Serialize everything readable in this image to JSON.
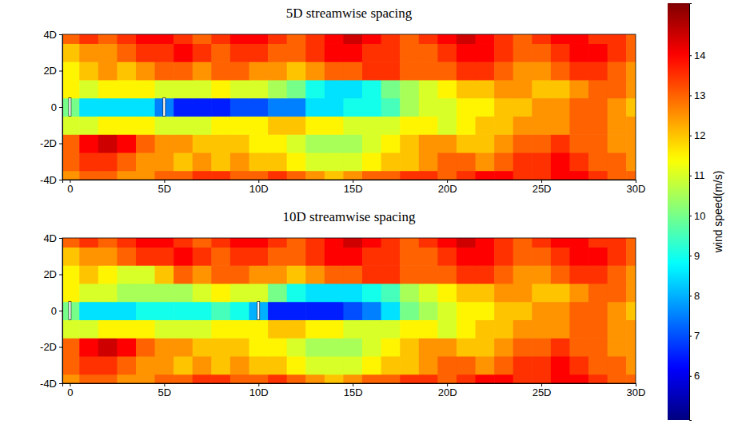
{
  "chart_data": [
    {
      "type": "heatmap",
      "title": "5D streamwise spacing",
      "x": [
        0,
        1,
        2,
        3,
        4,
        5,
        6,
        7,
        8,
        9,
        10,
        11,
        12,
        13,
        14,
        15,
        16,
        17,
        18,
        19,
        20,
        21,
        22,
        23,
        24,
        25,
        26,
        27,
        28,
        29,
        30
      ],
      "y": [
        -4,
        -3,
        -2,
        -1,
        0,
        1,
        2,
        3,
        4
      ],
      "z": [
        [
          12.5,
          13,
          13,
          12.5,
          12.5,
          13,
          13,
          13.5,
          13.5,
          13,
          13,
          13.5,
          13,
          12.5,
          12,
          12.5,
          13,
          13,
          13.5,
          13.5,
          13,
          13.5,
          14,
          14,
          13.5,
          13.5,
          14,
          14,
          13.5,
          13,
          13
        ],
        [
          13,
          13.5,
          13.5,
          13,
          12.5,
          12.5,
          12,
          12.5,
          12,
          12.5,
          12,
          12,
          11.5,
          11,
          11,
          11,
          11.5,
          12,
          12,
          12.5,
          13,
          13,
          12.5,
          13,
          13.5,
          13.5,
          14,
          13.5,
          13,
          13,
          12.5
        ],
        [
          13,
          14,
          14.5,
          14,
          13,
          12.5,
          12.5,
          12,
          12,
          12,
          11.5,
          11.5,
          11,
          10.5,
          10.5,
          10.5,
          11,
          11.5,
          12,
          12.5,
          12.5,
          12,
          12,
          12.5,
          13,
          13,
          13.5,
          13,
          13,
          12.5,
          12.5
        ],
        [
          11,
          11,
          11.5,
          11.5,
          11.5,
          11,
          11,
          11,
          11.5,
          11.5,
          11.5,
          12,
          12,
          11.5,
          11.5,
          11,
          11,
          11,
          11.5,
          11.5,
          11,
          11.5,
          12,
          12,
          12.5,
          12.5,
          12.5,
          13,
          13,
          12.5,
          12.5
        ],
        [
          10,
          8.5,
          8.5,
          8.5,
          8.5,
          7.5,
          6.5,
          6.5,
          6.5,
          7,
          7,
          7.5,
          7.5,
          8.5,
          8.5,
          9,
          9,
          9.5,
          10.5,
          11,
          11,
          11.5,
          11.5,
          12,
          12,
          12.5,
          12.5,
          13,
          13,
          12.5,
          12
        ],
        [
          11.5,
          11,
          11.5,
          11.5,
          11.5,
          11,
          11,
          11,
          11.5,
          11,
          11,
          10.5,
          10,
          9,
          8.5,
          8.5,
          9,
          10,
          10.5,
          11,
          11.5,
          12,
          12,
          12.5,
          12.5,
          12,
          12,
          12.5,
          13,
          13,
          12.5
        ],
        [
          11.5,
          12,
          12.5,
          12,
          12.5,
          13,
          13,
          12.5,
          13,
          13,
          12.5,
          12.5,
          12,
          12.5,
          13,
          13,
          13.5,
          13.5,
          13,
          13,
          13,
          13.5,
          13.5,
          13,
          12.5,
          12.5,
          13,
          13.5,
          13.5,
          13,
          12.5
        ],
        [
          12,
          12.5,
          12.5,
          13,
          13.5,
          13.5,
          14,
          13.5,
          13,
          13.5,
          13.5,
          13,
          13,
          13.5,
          14,
          14,
          13.5,
          13.5,
          13,
          13,
          13.5,
          14,
          14,
          13.5,
          13,
          13,
          13.5,
          14,
          14,
          13.5,
          13
        ],
        [
          13,
          13.5,
          13,
          13.5,
          14,
          14,
          13.5,
          13,
          13.5,
          14,
          14,
          13.5,
          13,
          13.5,
          14,
          14.5,
          14,
          13.5,
          13,
          13.5,
          14,
          14.5,
          14,
          13.5,
          13,
          13.5,
          14,
          14,
          13.5,
          13.5,
          13
        ]
      ],
      "turbines": [
        0,
        5
      ],
      "xlim": [
        -0.4,
        30
      ],
      "ylim": [
        -4,
        4
      ],
      "xticks": [
        0,
        {
          "value": 5,
          "label": "5D"
        },
        {
          "value": 10,
          "label": "10D"
        },
        {
          "value": 15,
          "label": "15D"
        },
        {
          "value": 20,
          "label": "20D"
        },
        {
          "value": 25,
          "label": "25D"
        },
        {
          "value": 30,
          "label": "30D"
        }
      ],
      "yticks": [
        {
          "value": -4,
          "label": "-4D"
        },
        {
          "value": -2,
          "label": "-2D"
        },
        0,
        {
          "value": 2,
          "label": "2D"
        },
        {
          "value": 4,
          "label": "4D"
        }
      ],
      "colorbar": {
        "label": "wind speed(m/s)",
        "range": [
          4.9,
          15.3
        ],
        "ticks": [
          6,
          7,
          8,
          9,
          10,
          11,
          12,
          13,
          14
        ]
      }
    },
    {
      "type": "heatmap",
      "title": "10D streamwise spacing",
      "x": [
        0,
        1,
        2,
        3,
        4,
        5,
        6,
        7,
        8,
        9,
        10,
        11,
        12,
        13,
        14,
        15,
        16,
        17,
        18,
        19,
        20,
        21,
        22,
        23,
        24,
        25,
        26,
        27,
        28,
        29,
        30
      ],
      "y": [
        -4,
        -3,
        -2,
        -1,
        0,
        1,
        2,
        3,
        4
      ],
      "z": [
        [
          12.5,
          13,
          13,
          12.5,
          12.5,
          13,
          13,
          13.5,
          13.5,
          13,
          13,
          13.5,
          13,
          12.5,
          12,
          12.5,
          13,
          13,
          13.5,
          13.5,
          13,
          13.5,
          14,
          14,
          13.5,
          13.5,
          14,
          14,
          13.5,
          13,
          13
        ],
        [
          13,
          13.5,
          13.5,
          13,
          12.5,
          12.5,
          12,
          12.5,
          12,
          12.5,
          12,
          12,
          11.5,
          11,
          11,
          11,
          11.5,
          12,
          12,
          12.5,
          13,
          13,
          12.5,
          13,
          13.5,
          13.5,
          14,
          13.5,
          13,
          13,
          12.5
        ],
        [
          13,
          14,
          14.5,
          14,
          13,
          12.5,
          12.5,
          12,
          12,
          12,
          11.5,
          11.5,
          11,
          10.5,
          10.5,
          10.5,
          11,
          11.5,
          12,
          12.5,
          12.5,
          12,
          12,
          12.5,
          13,
          13,
          13.5,
          13,
          13,
          12.5,
          12.5
        ],
        [
          11,
          11,
          11.5,
          11.5,
          11.5,
          11,
          11,
          11,
          11.5,
          11.5,
          11.5,
          12,
          12,
          11.5,
          11.5,
          11,
          11,
          11,
          11.5,
          11.5,
          11,
          11.5,
          12,
          12,
          12.5,
          12.5,
          12.5,
          13,
          13,
          12.5,
          12.5
        ],
        [
          10,
          8.5,
          8.5,
          8.5,
          9,
          9,
          9,
          9,
          9.5,
          9,
          8,
          6.5,
          6.5,
          6.5,
          6.5,
          7,
          7.5,
          8.5,
          10,
          10.5,
          11,
          11.5,
          11.5,
          12,
          12,
          12.5,
          12.5,
          13,
          13,
          12.5,
          12
        ],
        [
          11.5,
          11,
          11,
          10.5,
          10.5,
          10.5,
          10.5,
          11,
          11.5,
          11,
          11,
          10,
          9,
          8.5,
          8.5,
          8.5,
          9,
          9.5,
          10.5,
          11,
          11.5,
          12,
          12,
          12.5,
          12.5,
          12,
          12,
          12.5,
          13,
          13,
          12.5
        ],
        [
          11.5,
          12,
          11.5,
          11,
          11,
          12,
          13,
          12.5,
          13,
          13,
          12.5,
          12.5,
          12,
          12.5,
          13,
          13,
          13.5,
          13.5,
          13,
          13,
          13,
          13.5,
          13.5,
          13,
          12.5,
          12.5,
          13,
          13.5,
          13.5,
          13,
          12.5
        ],
        [
          12,
          12.5,
          12.5,
          13,
          13.5,
          13.5,
          14,
          13.5,
          13,
          13.5,
          13.5,
          13,
          13,
          13.5,
          14,
          14,
          13.5,
          13.5,
          13,
          13,
          13.5,
          14,
          14,
          13.5,
          13,
          13,
          13.5,
          14,
          14,
          13.5,
          13
        ],
        [
          13,
          13.5,
          13,
          13.5,
          14,
          14,
          13.5,
          13,
          13.5,
          14,
          14,
          13.5,
          13,
          13.5,
          14,
          14.5,
          14,
          13.5,
          13,
          13.5,
          14,
          14.5,
          14,
          13.5,
          13,
          13.5,
          14,
          14,
          13.5,
          13.5,
          13
        ]
      ],
      "turbines": [
        0,
        10
      ],
      "xlim": [
        -0.4,
        30
      ],
      "ylim": [
        -4,
        4
      ],
      "xticks": [
        0,
        {
          "value": 5,
          "label": "5D"
        },
        {
          "value": 10,
          "label": "10D"
        },
        {
          "value": 15,
          "label": "15D"
        },
        {
          "value": 20,
          "label": "20D"
        },
        {
          "value": 25,
          "label": "25D"
        },
        {
          "value": 30,
          "label": "30D"
        }
      ],
      "yticks": [
        {
          "value": -4,
          "label": "-4D"
        },
        {
          "value": -2,
          "label": "-2D"
        },
        0,
        {
          "value": 2,
          "label": "2D"
        },
        {
          "value": 4,
          "label": "4D"
        }
      ]
    }
  ]
}
